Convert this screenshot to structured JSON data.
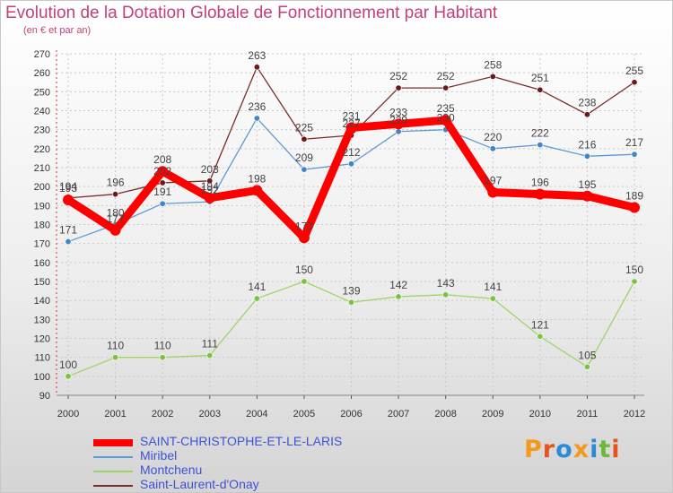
{
  "title": "Evolution de la Dotation Globale de Fonctionnement par Habitant",
  "subtitle": "(en € et par an)",
  "logo": {
    "text": "Proxiti",
    "colors": [
      "#f39a1c",
      "#e8531d",
      "#2d8ad6",
      "#f39a1c",
      "#2d8ad6",
      "#6bb83c",
      "#e8531d"
    ]
  },
  "legend": [
    {
      "label": "SAINT-CHRISTOPHE-ET-LE-LARIS",
      "color": "#ff0000",
      "weight": "thick"
    },
    {
      "label": "Miribel",
      "color": "#5b9bd5",
      "weight": "thin"
    },
    {
      "label": "Montchenu",
      "color": "#9ed46a",
      "weight": "thin"
    },
    {
      "label": "Saint-Laurent-d'Onay",
      "color": "#7b2c2c",
      "weight": "thin"
    }
  ],
  "chart_data": {
    "type": "line",
    "title": "Evolution de la Dotation Globale de Fonctionnement par Habitant",
    "ylabel": "(en € et par an)",
    "xlabel": "",
    "x": [
      "2000",
      "2001",
      "2002",
      "2003",
      "2004",
      "2005",
      "2006",
      "2007",
      "2008",
      "2009",
      "2010",
      "2011",
      "2012"
    ],
    "ylim": [
      90,
      270
    ],
    "yticks": [
      90,
      100,
      110,
      120,
      130,
      140,
      150,
      160,
      170,
      180,
      190,
      200,
      210,
      220,
      230,
      240,
      250,
      260,
      270
    ],
    "grid": true,
    "series": [
      {
        "name": "Saint-Laurent-d'Onay",
        "color": "#7b2c2c",
        "marker": "#6b1a1a",
        "width": 1.3,
        "values": [
          194,
          196,
          202,
          203,
          263,
          225,
          227,
          252,
          252,
          258,
          251,
          238,
          255
        ]
      },
      {
        "name": "Miribel",
        "color": "#5b9bd5",
        "marker": "#3f86c8",
        "width": 1.3,
        "values": [
          171,
          180,
          191,
          192,
          236,
          209,
          212,
          229,
          230,
          220,
          222,
          216,
          217
        ]
      },
      {
        "name": "Montchenu",
        "color": "#9ed46a",
        "marker": "#7cc142",
        "width": 1.3,
        "values": [
          100,
          110,
          110,
          111,
          141,
          150,
          139,
          142,
          143,
          141,
          121,
          105,
          150
        ]
      },
      {
        "name": "SAINT-CHRISTOPHE-ET-LE-LARIS",
        "color": "#ff0000",
        "marker": "#ff0000",
        "width": 9,
        "values": [
          193,
          177,
          208,
          194,
          198,
          173,
          231,
          233,
          235,
          197,
          196,
          195,
          189
        ]
      }
    ]
  }
}
